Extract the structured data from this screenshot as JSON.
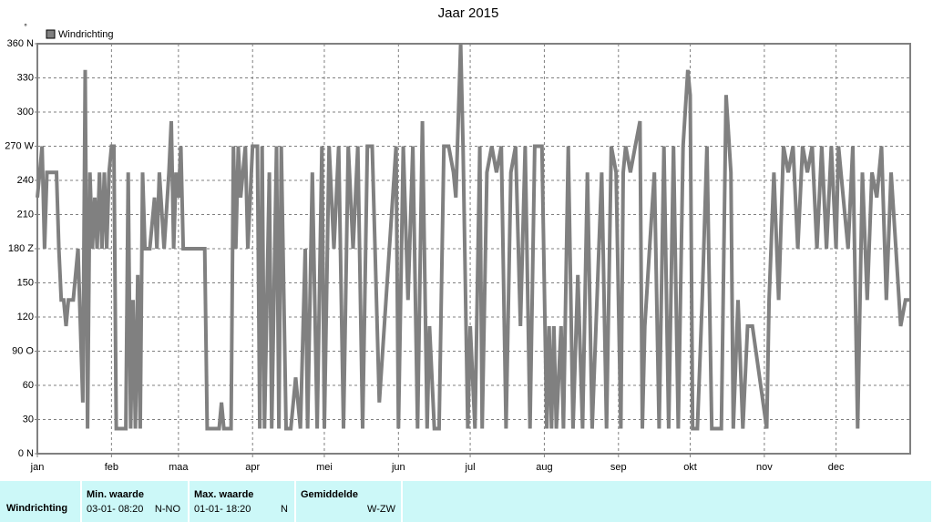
{
  "chart_data": {
    "type": "line",
    "title": "Jaar 2015",
    "y_label": "°",
    "xlim": [
      0,
      365
    ],
    "xticks": [
      {
        "value": 0,
        "label": "jan"
      },
      {
        "value": 31,
        "label": "feb"
      },
      {
        "value": 59,
        "label": "maa"
      },
      {
        "value": 90,
        "label": "apr"
      },
      {
        "value": 120,
        "label": "mei"
      },
      {
        "value": 151,
        "label": "jun"
      },
      {
        "value": 181,
        "label": "jul"
      },
      {
        "value": 212,
        "label": "aug"
      },
      {
        "value": 243,
        "label": "sep"
      },
      {
        "value": 273,
        "label": "okt"
      },
      {
        "value": 304,
        "label": "nov"
      },
      {
        "value": 334,
        "label": "dec"
      }
    ],
    "ylim": [
      0,
      360
    ],
    "yticks": [
      {
        "value": 0,
        "label": "0 N"
      },
      30,
      60,
      {
        "value": 90,
        "label": "90 O"
      },
      120,
      150,
      {
        "value": 180,
        "label": "180 Z"
      },
      210,
      240,
      {
        "value": 270,
        "label": "270 W"
      },
      300,
      330,
      {
        "value": 360,
        "label": "360 N"
      }
    ],
    "grid": true,
    "legend": "top-left",
    "x": [
      0,
      1,
      2,
      3,
      4,
      5,
      8,
      9,
      10,
      11,
      12,
      13,
      15,
      17,
      19,
      20,
      21,
      22,
      23,
      24,
      25,
      26,
      27,
      28,
      29,
      30,
      31,
      32,
      33,
      37,
      38,
      39,
      40,
      41,
      42,
      43,
      44,
      45,
      46,
      47,
      49,
      50,
      51,
      53,
      55,
      56,
      57,
      58,
      59,
      60,
      61,
      62,
      63,
      64,
      70,
      71,
      76,
      77,
      78,
      81,
      82,
      83,
      84,
      85,
      87,
      88,
      90,
      91,
      92,
      93,
      94,
      95,
      97,
      98,
      100,
      101,
      102,
      104,
      105,
      106,
      108,
      110,
      112,
      113,
      115,
      117,
      119,
      120,
      122,
      124,
      126,
      128,
      130,
      132,
      134,
      136,
      138,
      140,
      143,
      150,
      151,
      153,
      155,
      157,
      159,
      161,
      163,
      164,
      166,
      168,
      170,
      172,
      174,
      175,
      177,
      178,
      180,
      181,
      183,
      185,
      186,
      188,
      190,
      192,
      194,
      196,
      198,
      200,
      202,
      204,
      206,
      208,
      210,
      211,
      213,
      214,
      215,
      216,
      217,
      219,
      220,
      222,
      224,
      226,
      228,
      230,
      232,
      234,
      236,
      238,
      240,
      242,
      244,
      245,
      246,
      248,
      250,
      252,
      253,
      254,
      256,
      258,
      260,
      262,
      264,
      266,
      268,
      270,
      272,
      273,
      274,
      276,
      278,
      280,
      282,
      284,
      286,
      288,
      290,
      291,
      293,
      295,
      297,
      299,
      305,
      306,
      308,
      310,
      312,
      314,
      316,
      318,
      320,
      322,
      324,
      326,
      328,
      330,
      332,
      334,
      335,
      337,
      339,
      341,
      343,
      345,
      347,
      349,
      351,
      353,
      355,
      357,
      359,
      361,
      363,
      365
    ],
    "series": [
      {
        "name": "Windrichting",
        "color": "#808080",
        "values": [
          225,
          247,
          270,
          180,
          247,
          247,
          247,
          180,
          135,
          135,
          112,
          135,
          135,
          180,
          45,
          337,
          22,
          247,
          180,
          225,
          180,
          247,
          180,
          247,
          180,
          247,
          270,
          270,
          22,
          22,
          247,
          22,
          135,
          22,
          157,
          22,
          247,
          180,
          180,
          180,
          225,
          180,
          247,
          180,
          247,
          292,
          180,
          247,
          225,
          270,
          180,
          180,
          180,
          180,
          180,
          22,
          22,
          45,
          22,
          22,
          270,
          180,
          270,
          225,
          270,
          180,
          270,
          270,
          270,
          22,
          270,
          22,
          247,
          22,
          270,
          22,
          270,
          22,
          22,
          22,
          67,
          22,
          180,
          22,
          247,
          22,
          270,
          22,
          270,
          180,
          270,
          22,
          270,
          180,
          270,
          22,
          270,
          270,
          45,
          270,
          22,
          270,
          135,
          270,
          22,
          292,
          22,
          112,
          22,
          22,
          270,
          270,
          247,
          225,
          360,
          270,
          22,
          112,
          22,
          270,
          22,
          247,
          270,
          247,
          270,
          22,
          247,
          270,
          112,
          270,
          22,
          270,
          270,
          270,
          22,
          112,
          22,
          112,
          22,
          112,
          22,
          270,
          22,
          157,
          22,
          247,
          22,
          135,
          247,
          22,
          270,
          247,
          22,
          247,
          270,
          247,
          270,
          292,
          22,
          112,
          180,
          247,
          22,
          270,
          22,
          270,
          22,
          270,
          337,
          315,
          22,
          22,
          135,
          270,
          22,
          22,
          22,
          315,
          247,
          22,
          135,
          22,
          112,
          112,
          22,
          135,
          247,
          135,
          270,
          247,
          270,
          180,
          270,
          247,
          270,
          180,
          270,
          180,
          270,
          180,
          270,
          225,
          180,
          270,
          22,
          247,
          135,
          247,
          225,
          270,
          135,
          247,
          180,
          112,
          135,
          135
        ]
      }
    ]
  },
  "table": {
    "row_label": "Windrichting",
    "columns": [
      {
        "header": "Min. waarde",
        "date": "03-01- 08:20",
        "value": "N-NO"
      },
      {
        "header": "Max. waarde",
        "date": "01-01- 18:20",
        "value": "N"
      },
      {
        "header": "Gemiddelde",
        "value": "W-ZW"
      }
    ]
  }
}
